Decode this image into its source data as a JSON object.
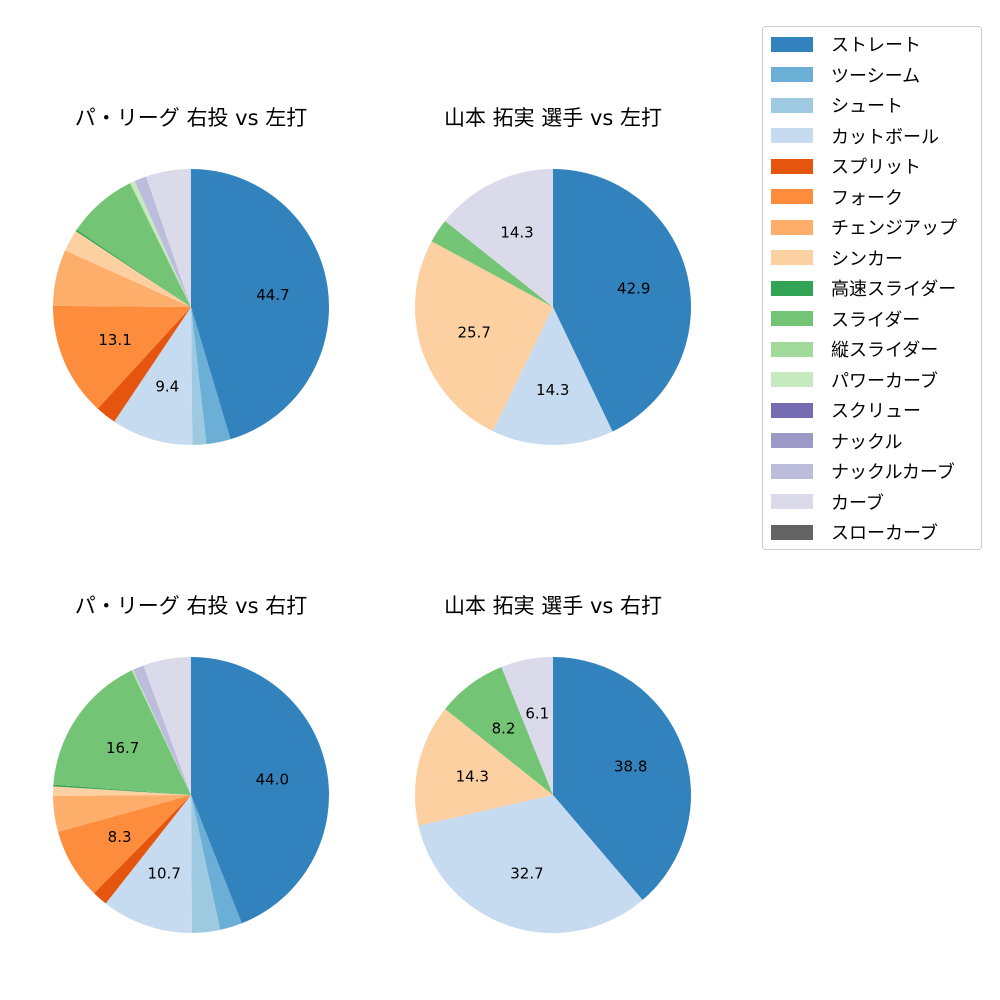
{
  "chart_data": [
    {
      "type": "pie",
      "title": "パ・リーグ 右投 vs 左打",
      "slices": [
        {
          "label": "ストレート",
          "value": 44.7,
          "color": "#3182bd",
          "shown": "44.7"
        },
        {
          "label": "ツーシーム",
          "value": 2.8,
          "color": "#6baed6",
          "shown": ""
        },
        {
          "label": "シュート",
          "value": 1.6,
          "color": "#9ecae1",
          "shown": ""
        },
        {
          "label": "カットボール",
          "value": 9.4,
          "color": "#c6dbef",
          "shown": "9.4"
        },
        {
          "label": "スプリット",
          "value": 2.4,
          "color": "#e6550d",
          "shown": ""
        },
        {
          "label": "フォーク",
          "value": 13.1,
          "color": "#fd8d3c",
          "shown": "13.1"
        },
        {
          "label": "チェンジアップ",
          "value": 6.5,
          "color": "#fdae6b",
          "shown": ""
        },
        {
          "label": "シンカー",
          "value": 2.5,
          "color": "#fdd0a2",
          "shown": ""
        },
        {
          "label": "高速スライダー",
          "value": 0.2,
          "color": "#31a354",
          "shown": ""
        },
        {
          "label": "スライダー",
          "value": 8.1,
          "color": "#74c476",
          "shown": ""
        },
        {
          "label": "縦スライダー",
          "value": 0.1,
          "color": "#a1d99b",
          "shown": ""
        },
        {
          "label": "パワーカーブ",
          "value": 0.5,
          "color": "#c7e9c0",
          "shown": ""
        },
        {
          "label": "ナックルカーブ",
          "value": 1.4,
          "color": "#bcbddc",
          "shown": ""
        },
        {
          "label": "カーブ",
          "value": 5.2,
          "color": "#dadaeb",
          "shown": ""
        }
      ]
    },
    {
      "type": "pie",
      "title": "山本 拓実 選手 vs 左打",
      "slices": [
        {
          "label": "ストレート",
          "value": 42.9,
          "color": "#3182bd",
          "shown": "42.9"
        },
        {
          "label": "カットボール",
          "value": 14.3,
          "color": "#c6dbef",
          "shown": "14.3"
        },
        {
          "label": "シンカー",
          "value": 25.7,
          "color": "#fdd0a2",
          "shown": "25.7"
        },
        {
          "label": "スライダー",
          "value": 2.8,
          "color": "#74c476",
          "shown": ""
        },
        {
          "label": "カーブ",
          "value": 14.3,
          "color": "#dadaeb",
          "shown": "14.3"
        }
      ]
    },
    {
      "type": "pie",
      "title": "パ・リーグ 右投 vs 右打",
      "slices": [
        {
          "label": "ストレート",
          "value": 44.0,
          "color": "#3182bd",
          "shown": "44.0"
        },
        {
          "label": "ツーシーム",
          "value": 2.6,
          "color": "#6baed6",
          "shown": ""
        },
        {
          "label": "シュート",
          "value": 3.3,
          "color": "#9ecae1",
          "shown": ""
        },
        {
          "label": "カットボール",
          "value": 10.7,
          "color": "#c6dbef",
          "shown": "10.7"
        },
        {
          "label": "スプリット",
          "value": 1.8,
          "color": "#e6550d",
          "shown": ""
        },
        {
          "label": "フォーク",
          "value": 8.3,
          "color": "#fd8d3c",
          "shown": "8.3"
        },
        {
          "label": "チェンジアップ",
          "value": 4.2,
          "color": "#fdae6b",
          "shown": ""
        },
        {
          "label": "シンカー",
          "value": 1.1,
          "color": "#fdd0a2",
          "shown": ""
        },
        {
          "label": "高速スライダー",
          "value": 0.2,
          "color": "#31a354",
          "shown": ""
        },
        {
          "label": "スライダー",
          "value": 16.7,
          "color": "#74c476",
          "shown": "16.7"
        },
        {
          "label": "縦スライダー",
          "value": 0.1,
          "color": "#a1d99b",
          "shown": ""
        },
        {
          "label": "パワーカーブ",
          "value": 0.1,
          "color": "#c7e9c0",
          "shown": ""
        },
        {
          "label": "ナックルカーブ",
          "value": 1.3,
          "color": "#bcbddc",
          "shown": ""
        },
        {
          "label": "カーブ",
          "value": 5.6,
          "color": "#dadaeb",
          "shown": ""
        }
      ]
    },
    {
      "type": "pie",
      "title": "山本 拓実 選手 vs 右打",
      "slices": [
        {
          "label": "ストレート",
          "value": 38.8,
          "color": "#3182bd",
          "shown": "38.8"
        },
        {
          "label": "カットボール",
          "value": 32.7,
          "color": "#c6dbef",
          "shown": "32.7"
        },
        {
          "label": "シンカー",
          "value": 14.3,
          "color": "#fdd0a2",
          "shown": "14.3"
        },
        {
          "label": "スライダー",
          "value": 8.2,
          "color": "#74c476",
          "shown": "8.2"
        },
        {
          "label": "カーブ",
          "value": 6.1,
          "color": "#dadaeb",
          "shown": "6.1"
        }
      ]
    }
  ],
  "legend": [
    {
      "label": "ストレート",
      "color": "#3182bd"
    },
    {
      "label": "ツーシーム",
      "color": "#6baed6"
    },
    {
      "label": "シュート",
      "color": "#9ecae1"
    },
    {
      "label": "カットボール",
      "color": "#c6dbef"
    },
    {
      "label": "スプリット",
      "color": "#e6550d"
    },
    {
      "label": "フォーク",
      "color": "#fd8d3c"
    },
    {
      "label": "チェンジアップ",
      "color": "#fdae6b"
    },
    {
      "label": "シンカー",
      "color": "#fdd0a2"
    },
    {
      "label": "高速スライダー",
      "color": "#31a354"
    },
    {
      "label": "スライダー",
      "color": "#74c476"
    },
    {
      "label": "縦スライダー",
      "color": "#a1d99b"
    },
    {
      "label": "パワーカーブ",
      "color": "#c7e9c0"
    },
    {
      "label": "スクリュー",
      "color": "#756bb1"
    },
    {
      "label": "ナックル",
      "color": "#9e9ac8"
    },
    {
      "label": "ナックルカーブ",
      "color": "#bcbddc"
    },
    {
      "label": "カーブ",
      "color": "#dadaeb"
    },
    {
      "label": "スローカーブ",
      "color": "#636363"
    }
  ]
}
